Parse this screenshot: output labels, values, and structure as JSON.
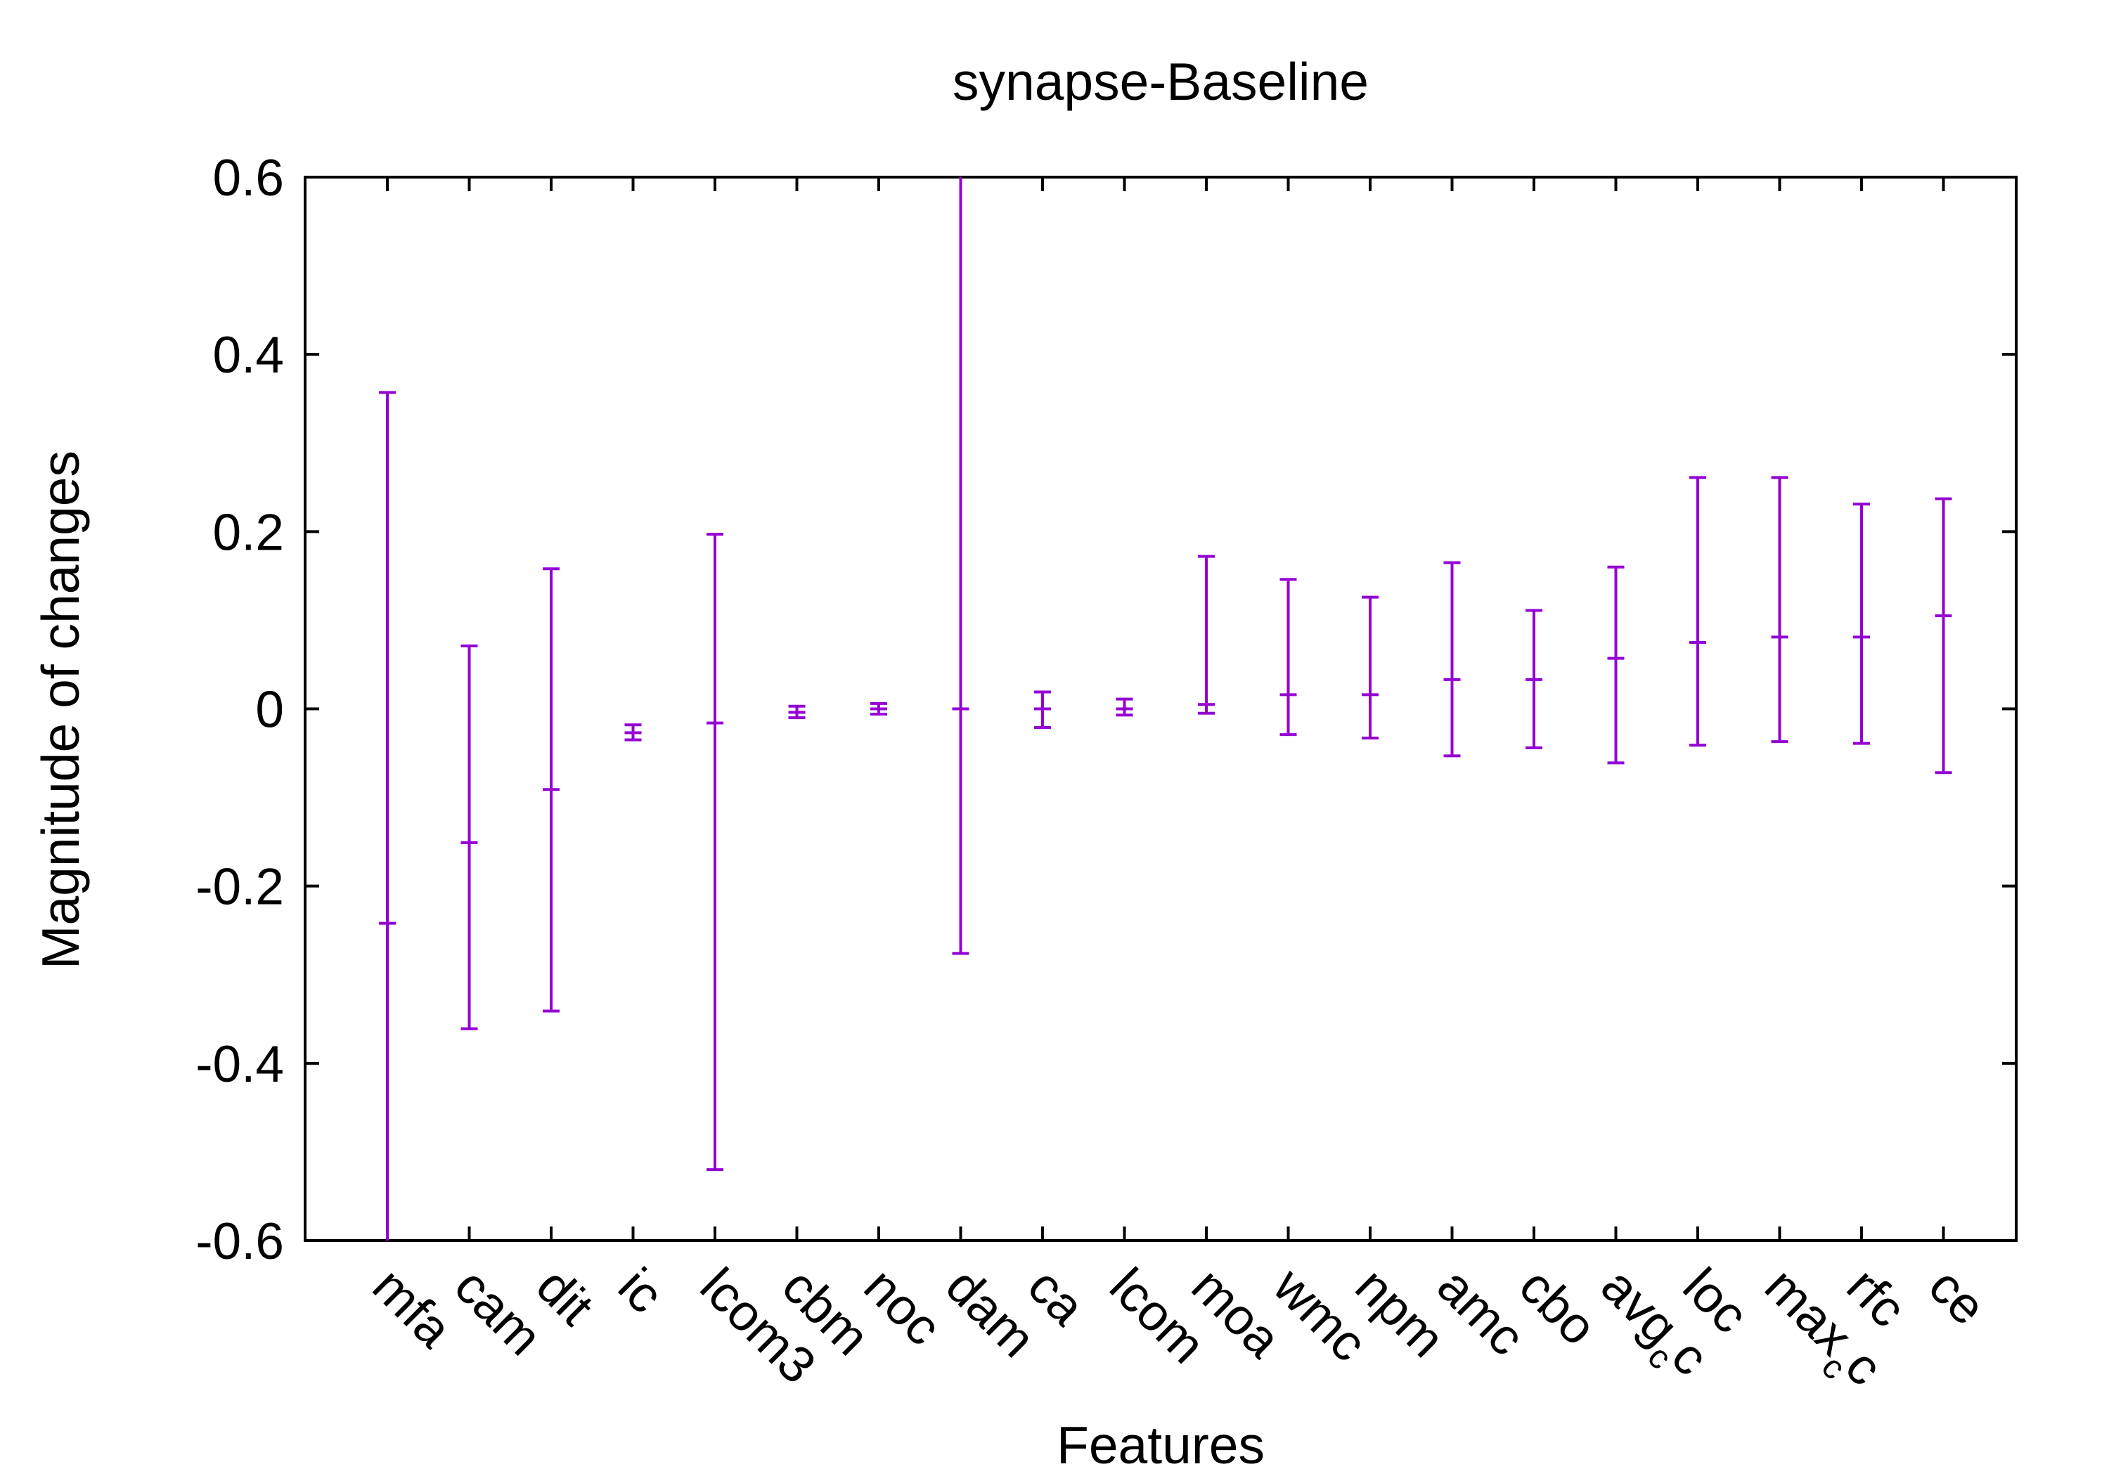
{
  "chart_data": {
    "type": "errorbar",
    "title": "synapse-Baseline",
    "xlabel": "Features",
    "ylabel": "Magnitude of changes",
    "ylim": [
      -0.6,
      0.6
    ],
    "yticks": [
      "0.6",
      "0.4",
      "0.2",
      "0",
      "-0.2",
      "-0.4",
      "-0.6"
    ],
    "ytick_values": [
      0.6,
      0.4,
      0.2,
      0,
      -0.2,
      -0.4,
      -0.6
    ],
    "grid": false,
    "legend": "none",
    "color": "#9400D3",
    "categories": [
      {
        "label": "mfa",
        "sub": ""
      },
      {
        "label": "cam",
        "sub": ""
      },
      {
        "label": "dit",
        "sub": ""
      },
      {
        "label": "ic",
        "sub": ""
      },
      {
        "label": "lcom3",
        "sub": ""
      },
      {
        "label": "cbm",
        "sub": ""
      },
      {
        "label": "noc",
        "sub": ""
      },
      {
        "label": "dam",
        "sub": ""
      },
      {
        "label": "ca",
        "sub": ""
      },
      {
        "label": "lcom",
        "sub": ""
      },
      {
        "label": "moa",
        "sub": ""
      },
      {
        "label": "wmc",
        "sub": ""
      },
      {
        "label": "npm",
        "sub": ""
      },
      {
        "label": "amc",
        "sub": ""
      },
      {
        "label": "cbo",
        "sub": ""
      },
      {
        "label": "avg",
        "sub": "c",
        "tail": "c"
      },
      {
        "label": "loc",
        "sub": ""
      },
      {
        "label": "max",
        "sub": "c",
        "tail": "c"
      },
      {
        "label": "rfc",
        "sub": ""
      },
      {
        "label": "ce",
        "sub": ""
      }
    ],
    "center": [
      -0.242,
      -0.151,
      -0.091,
      -0.027,
      -0.016,
      -0.004,
      0.0,
      0.0,
      0.0,
      0.0,
      0.005,
      0.016,
      0.016,
      0.033,
      0.033,
      0.057,
      0.075,
      0.081,
      0.081,
      0.105
    ],
    "low": [
      -0.6,
      -0.361,
      -0.341,
      -0.035,
      -0.52,
      -0.01,
      -0.006,
      -0.276,
      -0.021,
      -0.007,
      -0.005,
      -0.029,
      -0.033,
      -0.053,
      -0.044,
      -0.061,
      -0.041,
      -0.037,
      -0.039,
      -0.072
    ],
    "high": [
      0.357,
      0.071,
      0.158,
      -0.018,
      0.197,
      0.003,
      0.006,
      0.6,
      0.019,
      0.011,
      0.172,
      0.146,
      0.126,
      0.165,
      0.111,
      0.16,
      0.261,
      0.261,
      0.231,
      0.237
    ]
  }
}
